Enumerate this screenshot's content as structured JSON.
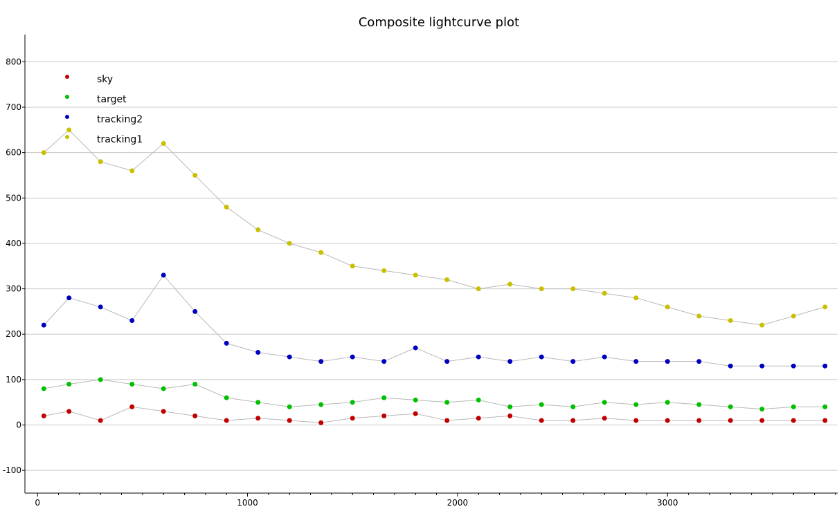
{
  "chart_data": {
    "type": "scatter",
    "title": "Composite lightcurve plot",
    "xlabel": "",
    "ylabel": "",
    "xlim": [
      -60,
      3810
    ],
    "ylim": [
      -150,
      860
    ],
    "x_ticks": [
      0,
      1000,
      2000,
      3000
    ],
    "y_ticks": [
      -100,
      0,
      100,
      200,
      300,
      400,
      500,
      600,
      700,
      800
    ],
    "grid": "horizontal",
    "legend_position": "top-left",
    "series": [
      {
        "name": "sky",
        "color": "#c00000",
        "x": [
          30,
          150,
          300,
          450,
          600,
          750,
          900,
          1050,
          1200,
          1350,
          1500,
          1650,
          1800,
          1950,
          2100,
          2250,
          2400,
          2550,
          2700,
          2850,
          3000,
          3150,
          3300,
          3450,
          3600,
          3750
        ],
        "values": [
          20,
          30,
          10,
          40,
          30,
          20,
          10,
          15,
          10,
          5,
          15,
          20,
          25,
          10,
          15,
          20,
          10,
          10,
          15,
          10,
          10,
          10,
          10,
          10,
          10,
          10
        ]
      },
      {
        "name": "target",
        "color": "#00c000",
        "x": [
          30,
          150,
          300,
          450,
          600,
          750,
          900,
          1050,
          1200,
          1350,
          1500,
          1650,
          1800,
          1950,
          2100,
          2250,
          2400,
          2550,
          2700,
          2850,
          3000,
          3150,
          3300,
          3450,
          3600,
          3750
        ],
        "values": [
          80,
          90,
          100,
          90,
          80,
          90,
          60,
          50,
          40,
          45,
          50,
          60,
          55,
          50,
          55,
          40,
          45,
          40,
          50,
          45,
          50,
          45,
          40,
          35,
          40,
          40
        ]
      },
      {
        "name": "tracking2",
        "color": "#0000c0",
        "x": [
          30,
          150,
          300,
          450,
          600,
          750,
          900,
          1050,
          1200,
          1350,
          1500,
          1650,
          1800,
          1950,
          2100,
          2250,
          2400,
          2550,
          2700,
          2850,
          3000,
          3150,
          3300,
          3450,
          3600,
          3750
        ],
        "values": [
          220,
          280,
          260,
          230,
          330,
          250,
          180,
          160,
          150,
          140,
          150,
          140,
          170,
          140,
          150,
          140,
          150,
          140,
          150,
          140,
          140,
          140,
          130,
          130,
          130,
          130
        ]
      },
      {
        "name": "tracking1",
        "color": "#c8c000",
        "x": [
          30,
          150,
          300,
          450,
          600,
          750,
          900,
          1050,
          1200,
          1350,
          1500,
          1650,
          1800,
          1950,
          2100,
          2250,
          2400,
          2550,
          2700,
          2850,
          3000,
          3150,
          3300,
          3450,
          3600,
          3750
        ],
        "values": [
          600,
          650,
          580,
          560,
          620,
          550,
          480,
          430,
          400,
          380,
          350,
          340,
          330,
          320,
          300,
          310,
          300,
          300,
          290,
          280,
          260,
          240,
          230,
          220,
          240,
          260
        ]
      }
    ]
  }
}
